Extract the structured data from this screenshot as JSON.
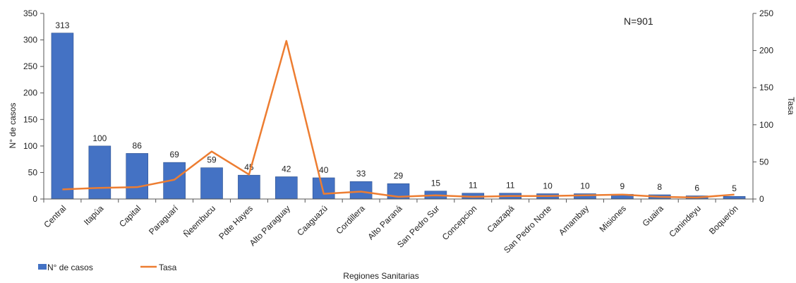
{
  "chart_data": {
    "type": "bar",
    "categories": [
      "Central",
      "Itapúa",
      "Capital",
      "Paraguarí",
      "Ñeembucu",
      "Pdte Hayes",
      "Alto Paraguay",
      "Caaguazú",
      "Cordillera",
      "Alto Paraná",
      "San Pedro Sur",
      "Concepcion",
      "Caazapá",
      "San Pedro Norte",
      "Amambay",
      "Misiones",
      "Guaira",
      "Canindeyu",
      "Boquerón"
    ],
    "series": [
      {
        "name": "N° de casos",
        "type": "bar",
        "axis": "left",
        "color": "#4472C4",
        "values": [
          313,
          100,
          86,
          69,
          59,
          45,
          42,
          40,
          33,
          29,
          15,
          11,
          11,
          10,
          10,
          9,
          8,
          6,
          5
        ],
        "labels": [
          "313",
          "100",
          "86",
          "69",
          "59",
          "45",
          "42",
          "40",
          "33",
          "29",
          "15",
          "11",
          "11",
          "10",
          "10",
          "9",
          "8",
          "6",
          "5"
        ]
      },
      {
        "name": "Tasa",
        "type": "line",
        "axis": "right",
        "color": "#ED7D31",
        "values": [
          13,
          15,
          16,
          26,
          64,
          33,
          213,
          7,
          10,
          3,
          5,
          3,
          4,
          4,
          5,
          6,
          3,
          2,
          6
        ]
      }
    ],
    "xlabel": "Regiones Sanitarias",
    "ylabel": "N° de casos",
    "y2label": "Tasa",
    "ylim": [
      0,
      350
    ],
    "y2lim": [
      0,
      250
    ],
    "yticks": [
      "0",
      "50",
      "100",
      "150",
      "200",
      "250",
      "300",
      "350"
    ],
    "y2ticks": [
      "0",
      "50",
      "100",
      "150",
      "200",
      "250"
    ],
    "annotation": "N=901",
    "legend_position": "bottom-left",
    "grid": false
  }
}
